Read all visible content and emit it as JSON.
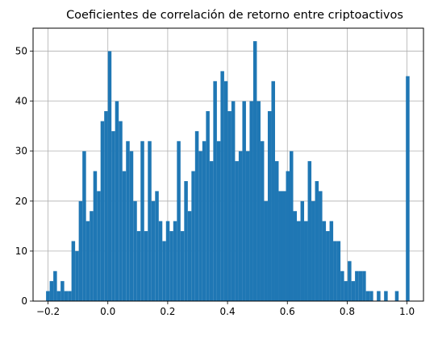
{
  "chart_data": {
    "type": "bar",
    "title": "Coeficientes de correlación de retorno entre criptoactivos",
    "xlabel": "",
    "ylabel": "",
    "xlim": [
      -0.25,
      1.055
    ],
    "ylim": [
      0,
      54.6
    ],
    "grid": true,
    "bar_color": "#1f77b4",
    "bin_width": 0.01215,
    "x_ticks": [
      -0.2,
      0.0,
      0.2,
      0.4,
      0.6,
      0.8,
      1.0
    ],
    "x_tick_labels": [
      "−0.2",
      "0.0",
      "0.2",
      "0.4",
      "0.6",
      "0.8",
      "1.0"
    ],
    "y_ticks": [
      0,
      10,
      20,
      30,
      40,
      50
    ],
    "y_tick_labels": [
      "0",
      "10",
      "20",
      "30",
      "40",
      "50"
    ],
    "bin_starts": [
      -0.2066,
      -0.1945,
      -0.1823,
      -0.1702,
      -0.158,
      -0.1459,
      -0.1337,
      -0.1216,
      -0.1094,
      -0.0973,
      -0.0851,
      -0.073,
      -0.0608,
      -0.0487,
      -0.0365,
      -0.0244,
      -0.0122,
      -0.0001,
      0.0121,
      0.0242,
      0.0364,
      0.0485,
      0.0607,
      0.0728,
      0.085,
      0.0971,
      0.1093,
      0.1214,
      0.1336,
      0.1457,
      0.1579,
      0.17,
      0.1822,
      0.1943,
      0.2065,
      0.2186,
      0.2308,
      0.2429,
      0.2551,
      0.2672,
      0.2794,
      0.2915,
      0.3037,
      0.3158,
      0.328,
      0.3401,
      0.3523,
      0.3644,
      0.3766,
      0.3887,
      0.4009,
      0.413,
      0.4252,
      0.4373,
      0.4495,
      0.4616,
      0.4738,
      0.4859,
      0.4981,
      0.5102,
      0.5224,
      0.5345,
      0.5467,
      0.5588,
      0.571,
      0.5831,
      0.5953,
      0.6074,
      0.6196,
      0.6317,
      0.6439,
      0.656,
      0.6682,
      0.6803,
      0.6925,
      0.7046,
      0.7168,
      0.7289,
      0.7411,
      0.7532,
      0.7654,
      0.7775,
      0.7897,
      0.8018,
      0.814,
      0.8261,
      0.8383,
      0.8504,
      0.8626,
      0.8747,
      0.8869,
      0.899,
      0.9112,
      0.9233,
      0.9355,
      0.9476,
      0.9598,
      0.9719,
      0.9841,
      0.9962
    ],
    "counts": [
      2,
      4,
      6,
      2,
      4,
      2,
      2,
      12,
      10,
      20,
      30,
      16,
      18,
      26,
      22,
      36,
      38,
      50,
      34,
      40,
      36,
      26,
      32,
      30,
      20,
      14,
      32,
      14,
      32,
      20,
      22,
      16,
      12,
      16,
      14,
      16,
      32,
      14,
      24,
      18,
      26,
      34,
      30,
      32,
      38,
      28,
      44,
      32,
      46,
      44,
      38,
      40,
      28,
      30,
      40,
      30,
      40,
      52,
      40,
      32,
      20,
      38,
      44,
      28,
      22,
      22,
      26,
      30,
      18,
      16,
      20,
      16,
      28,
      20,
      24,
      22,
      16,
      14,
      16,
      12,
      12,
      6,
      4,
      8,
      4,
      6,
      6,
      6,
      2,
      2,
      0,
      2,
      0,
      2,
      0,
      0,
      2,
      0,
      0,
      45
    ]
  }
}
